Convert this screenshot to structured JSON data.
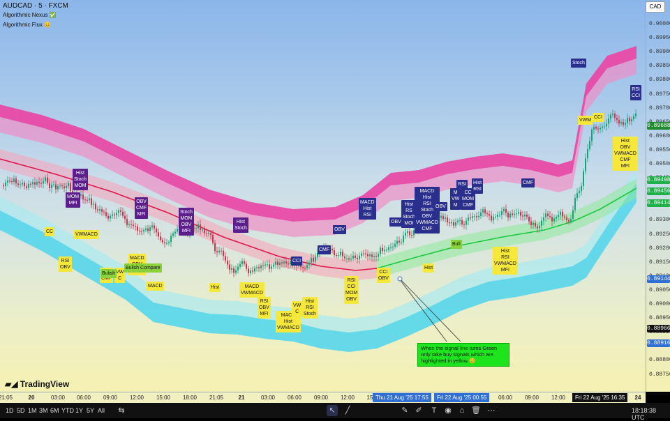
{
  "header": {
    "symbol": "AUDCAD · 5 · FXCM",
    "ind1": "Algorithmic Nexus ✅",
    "ind2": "Algorithmic Flux 😊",
    "currency": "CAD"
  },
  "price_axis": [
    "0.90000",
    "0.89950",
    "0.89900",
    "0.89850",
    "0.89800",
    "0.89750",
    "0.89700",
    "0.89650",
    "0.89600",
    "0.89550",
    "0.89500",
    "0.89450",
    "0.89400",
    "0.89350",
    "0.89300",
    "0.89250",
    "0.89200",
    "0.89150",
    "0.89100",
    "0.89050",
    "0.89000",
    "0.88950",
    "0.88900",
    "0.88850",
    "0.88800",
    "0.88750"
  ],
  "price_tags": [
    {
      "v": "0.89688",
      "c": "#1f8a2e"
    },
    {
      "v": "0.89498",
      "c": "#1fb04a"
    },
    {
      "v": "0.89456",
      "c": "#1fb04a"
    },
    {
      "v": "0.89414",
      "c": "#1fb04a"
    },
    {
      "v": "0.89144",
      "c": "#2f6fd6"
    },
    {
      "v": "0.88966",
      "c": "#111111"
    },
    {
      "v": "0.88916",
      "c": "#2f6fd6"
    }
  ],
  "time_axis": [
    "21:05",
    "20",
    "03:00",
    "06:00",
    "09:00",
    "12:00",
    "15:00",
    "18:00",
    "21:05",
    "21",
    "03:00",
    "06:00",
    "09:00",
    "12:00",
    "15",
    "06:00",
    "09:00",
    "12:00",
    "24"
  ],
  "time_tags": {
    "t1": "Thu 21 Aug '25  17:55",
    "t2": "Fri 22 Aug '25  00:55",
    "t3": "Fri 22 Aug '25  16:35"
  },
  "note": "When the signal line turns Green only take buy signals which are highlighted in yellow 😊",
  "logo": "TradingView",
  "bottom": {
    "ranges": [
      "1D",
      "5D",
      "1M",
      "3M",
      "6M",
      "YTD",
      "1Y",
      "5Y",
      "All"
    ],
    "clock": "18:18:38 UTC"
  },
  "badges": [
    {
      "t": "Hist\nStoch\nMOM",
      "k": "bp"
    },
    {
      "t": "MOM\nMFI",
      "k": "bp"
    },
    {
      "t": "OBV\nCMF\nMFI",
      "k": "bp"
    },
    {
      "t": "Stoch\nMOM\nOBV\nMFI",
      "k": "bp"
    },
    {
      "t": "Hist\nStoch",
      "k": "bp"
    },
    {
      "t": "CMF",
      "k": "bd"
    },
    {
      "t": "OBV",
      "k": "bd"
    },
    {
      "t": "MACD\nHist\nRSI",
      "k": "bd"
    },
    {
      "t": "CCI",
      "k": "bd"
    },
    {
      "t": "OBV",
      "k": "bd"
    },
    {
      "t": "Hist\nRS\nStoch\nMOI",
      "k": "bd"
    },
    {
      "t": "MACD\nHist\nRSI\nStoch\nOBV\nVWMACD\nCMF",
      "k": "bd"
    },
    {
      "t": "OBV",
      "k": "bd"
    },
    {
      "t": "RSI\nCCI\nM\nI",
      "k": "bd"
    },
    {
      "t": "M\nVW\nM",
      "k": "bd"
    },
    {
      "t": "CC\nMOM\nCMF",
      "k": "bd"
    },
    {
      "t": "Hist\nRSI",
      "k": "bd"
    },
    {
      "t": "CMF",
      "k": "bd"
    },
    {
      "t": "Stoch",
      "k": "bd"
    },
    {
      "t": "RSI\nCCI",
      "k": "bd"
    },
    {
      "t": "CC",
      "k": "by"
    },
    {
      "t": "RSI\nOBV",
      "k": "by"
    },
    {
      "t": "VWMACD",
      "k": "by"
    },
    {
      "t": "OBV\nCMF",
      "k": "by"
    },
    {
      "t": "VW\nC",
      "k": "by"
    },
    {
      "t": "MACD\nOBV\nCMF",
      "k": "by"
    },
    {
      "t": "MACD",
      "k": "by"
    },
    {
      "t": "Hist",
      "k": "by"
    },
    {
      "t": "MACD\nVWMACD",
      "k": "by"
    },
    {
      "t": "RSI\nOBV\nMFI",
      "k": "by"
    },
    {
      "t": "MACD\nHist\nVWMACD",
      "k": "by"
    },
    {
      "t": "VW\nC",
      "k": "by"
    },
    {
      "t": "Hist\nRSI\nStoch",
      "k": "by"
    },
    {
      "t": "RSI\nCCI\nMOM\nOBV",
      "k": "by"
    },
    {
      "t": "CCI\nOBV",
      "k": "by"
    },
    {
      "t": "Hist",
      "k": "by"
    },
    {
      "t": "Hist\nRSI\nVWMACD\nMFI",
      "k": "by"
    },
    {
      "t": "VWM",
      "k": "by"
    },
    {
      "t": "CCI",
      "k": "by"
    },
    {
      "t": "Hist\nOBV\nVWMACD\nCMF\nMFI",
      "k": "by"
    },
    {
      "t": "Bulish",
      "k": "bg"
    },
    {
      "t": "Bulish Compare",
      "k": "bg"
    },
    {
      "t": "Bull",
      "k": "bg"
    }
  ]
}
